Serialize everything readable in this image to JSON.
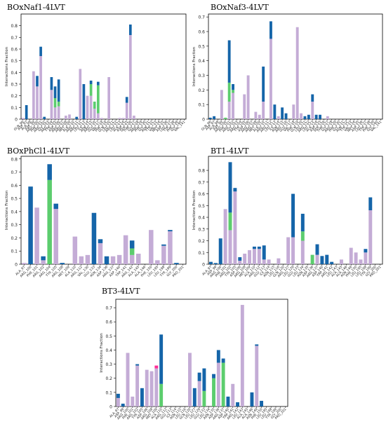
{
  "colors": {
    "hydrophobic": "#c4acd6",
    "hbond": "#1565a9",
    "water": "#5ccd6e",
    "ionic": "#ff2d96"
  },
  "chart_data": [
    {
      "type": "bar",
      "title": "BOxNaf1-4LVT",
      "ylabel": "Interactions Fraction",
      "ylim": [
        0,
        0.9
      ],
      "yticks": [
        0,
        0.1,
        0.2,
        0.3,
        0.4,
        0.5,
        0.6,
        0.7,
        0.8
      ],
      "categories": [
        "GLN_96",
        "ASP_97",
        "ALA_98",
        "ASP_99",
        "ARG_100",
        "PHE_101",
        "ARG_102",
        "GLY_103",
        "ARG_104",
        "TYR_105",
        "ASP_106",
        "ARG_107",
        "ARG_108",
        "MET_109",
        "ALA_110",
        "ARG_111",
        "ARG_112",
        "LEU_113",
        "ILE_114",
        "ASN_115",
        "ARG_116",
        "GLU_117",
        "VAL_118",
        "PHE_119",
        "GLN_120",
        "LEU_121",
        "ARG_122",
        "LEU_123",
        "ALA_124",
        "ASP_125",
        "SER_126",
        "THR_127",
        "GLY_128",
        "ARG_129",
        "PHE_130",
        "GLY_131",
        "ASN_132",
        "TYR_133",
        "VAL_134",
        "MET_135",
        "ASP_136",
        "LEU_137",
        "TYR_138",
        "PHE_139",
        "GLY_140",
        "VAL_141"
      ],
      "series": [
        {
          "key": "hydrophobic",
          "values": [
            0.01,
            0.0,
            0.0,
            0.41,
            0.28,
            0.54,
            0.0,
            0.0,
            0.25,
            0.1,
            0.11,
            0.0,
            0.03,
            0.04,
            0.0,
            0.0,
            0.43,
            0.0,
            0.2,
            0.2,
            0.09,
            0.05,
            0.01,
            0.0,
            0.36,
            0.0,
            0.0,
            0.01,
            0.01,
            0.14,
            0.72,
            0.03,
            0.0,
            0.0,
            0.0,
            0.0,
            0.0,
            0.0,
            0.0,
            0.0,
            0.0,
            0.0,
            0.0,
            0.0,
            0.0,
            0.0
          ]
        },
        {
          "key": "water",
          "values": [
            0.0,
            0.0,
            0.0,
            0.0,
            0.0,
            0.0,
            0.0,
            0.0,
            0.0,
            0.08,
            0.04,
            0.0,
            0.0,
            0.0,
            0.0,
            0.0,
            0.0,
            0.0,
            0.0,
            0.1,
            0.06,
            0.24,
            0.0,
            0.0,
            0.0,
            0.0,
            0.0,
            0.0,
            0.0,
            0.0,
            0.0,
            0.0,
            0.0,
            0.0,
            0.0,
            0.0,
            0.0,
            0.0,
            0.0,
            0.0,
            0.0,
            0.0,
            0.0,
            0.0,
            0.0,
            0.0
          ]
        },
        {
          "key": "hbond",
          "values": [
            0.0,
            0.12,
            0.0,
            0.0,
            0.09,
            0.08,
            0.02,
            0.0,
            0.11,
            0.1,
            0.19,
            0.0,
            0.0,
            0.0,
            0.0,
            0.02,
            0.0,
            0.3,
            0.0,
            0.03,
            0.0,
            0.03,
            0.0,
            0.0,
            0.0,
            0.0,
            0.0,
            0.0,
            0.0,
            0.05,
            0.09,
            0.0,
            0.0,
            0.0,
            0.0,
            0.0,
            0.0,
            0.0,
            0.0,
            0.0,
            0.0,
            0.0,
            0.0,
            0.0,
            0.0,
            0.0
          ]
        }
      ]
    },
    {
      "type": "bar",
      "title": "BOxNaf3-4LVT",
      "ylabel": "Interactions Fraction",
      "ylim": [
        0,
        0.72
      ],
      "yticks": [
        0,
        0.1,
        0.2,
        0.3,
        0.4,
        0.5,
        0.6,
        0.7
      ],
      "categories": [
        "GLN_96",
        "ASP_97",
        "ALA_98",
        "ASP_99",
        "ARG_100",
        "PHE_101",
        "ARG_102",
        "GLY_103",
        "ARG_104",
        "TYR_105",
        "ASP_106",
        "ARG_107",
        "ARG_108",
        "MET_109",
        "ALA_110",
        "ARG_111",
        "ARG_112",
        "LEU_113",
        "ILE_114",
        "ASN_115",
        "ARG_116",
        "GLU_117",
        "VAL_118",
        "PHE_119",
        "GLN_120",
        "LEU_121",
        "ARG_122",
        "LEU_123",
        "ALA_124",
        "ASP_125",
        "SER_126",
        "THR_127",
        "GLY_128",
        "ARG_129",
        "PHE_130",
        "GLY_131",
        "ASN_132",
        "TYR_133",
        "VAL_134",
        "MET_135",
        "ASP_136",
        "LEU_137",
        "TYR_138",
        "PHE_139",
        "GLY_140",
        "VAL_141"
      ],
      "series": [
        {
          "key": "hydrophobic",
          "values": [
            0.0,
            0.0,
            0.0,
            0.2,
            0.0,
            0.12,
            0.18,
            0.0,
            0.0,
            0.17,
            0.3,
            0.0,
            0.05,
            0.03,
            0.12,
            0.0,
            0.55,
            0.0,
            0.02,
            0.0,
            0.0,
            0.0,
            0.1,
            0.63,
            0.04,
            0.0,
            0.0,
            0.12,
            0.0,
            0.0,
            0.0,
            0.02,
            0.0,
            0.0,
            0.0,
            0.0,
            0.0,
            0.0,
            0.0,
            0.0,
            0.0,
            0.0,
            0.0,
            0.0,
            0.0,
            0.0
          ]
        },
        {
          "key": "water",
          "values": [
            0.0,
            0.0,
            0.0,
            0.0,
            0.01,
            0.13,
            0.02,
            0.0,
            0.0,
            0.0,
            0.0,
            0.0,
            0.0,
            0.0,
            0.0,
            0.0,
            0.0,
            0.0,
            0.0,
            0.0,
            0.0,
            0.0,
            0.0,
            0.0,
            0.0,
            0.0,
            0.0,
            0.0,
            0.0,
            0.0,
            0.0,
            0.0,
            0.0,
            0.0,
            0.0,
            0.0,
            0.0,
            0.0,
            0.0,
            0.0,
            0.0,
            0.0,
            0.0,
            0.0,
            0.0,
            0.0
          ]
        },
        {
          "key": "hbond",
          "values": [
            0.01,
            0.02,
            0.0,
            0.0,
            0.0,
            0.29,
            0.04,
            0.0,
            0.0,
            0.0,
            0.0,
            0.0,
            0.0,
            0.0,
            0.24,
            0.0,
            0.12,
            0.1,
            0.0,
            0.08,
            0.04,
            0.0,
            0.0,
            0.0,
            0.0,
            0.02,
            0.03,
            0.05,
            0.03,
            0.03,
            0.0,
            0.0,
            0.0,
            0.0,
            0.0,
            0.0,
            0.0,
            0.0,
            0.0,
            0.0,
            0.0,
            0.0,
            0.0,
            0.0,
            0.0,
            0.0
          ]
        }
      ]
    },
    {
      "type": "bar",
      "title": "BOxPhCl1-4LVT",
      "ylabel": "Interactions Fraction",
      "ylim": [
        0,
        0.82
      ],
      "yticks": [
        0,
        0.1,
        0.2,
        0.3,
        0.4,
        0.5,
        0.6,
        0.7,
        0.8
      ],
      "categories": [
        "ALA_97",
        "ARG_100",
        "PHE_101",
        "ARG_102",
        "ARG_104",
        "TYR_105",
        "ARG_108",
        "MET_109",
        "ALA_110",
        "ARG_112",
        "VAL_130",
        "GLU_133",
        "ASN_134",
        "ASP_136",
        "ARG_137",
        "ASP_140",
        "TRP_141",
        "ARG_142",
        "ALA_145",
        "ALA_146",
        "PHE_150",
        "LEU_195",
        "LEU_198",
        "TYR_199",
        "GLY_200",
        "PRO_201"
      ],
      "series": [
        {
          "key": "hydrophobic",
          "values": [
            0.01,
            0.0,
            0.43,
            0.03,
            0.0,
            0.42,
            0.0,
            0.0,
            0.21,
            0.06,
            0.07,
            0.0,
            0.16,
            0.0,
            0.06,
            0.07,
            0.22,
            0.07,
            0.08,
            0.0,
            0.26,
            0.03,
            0.14,
            0.25,
            0.0,
            0.0
          ]
        },
        {
          "key": "water",
          "values": [
            0.0,
            0.0,
            0.0,
            0.0,
            0.64,
            0.0,
            0.0,
            0.0,
            0.0,
            0.0,
            0.0,
            0.0,
            0.0,
            0.0,
            0.0,
            0.0,
            0.0,
            0.05,
            0.0,
            0.0,
            0.0,
            0.0,
            0.0,
            0.0,
            0.0,
            0.0
          ]
        },
        {
          "key": "hbond",
          "values": [
            0.0,
            0.59,
            0.0,
            0.03,
            0.12,
            0.04,
            0.01,
            0.0,
            0.0,
            0.0,
            0.0,
            0.39,
            0.03,
            0.06,
            0.0,
            0.0,
            0.0,
            0.06,
            0.0,
            0.0,
            0.0,
            0.0,
            0.01,
            0.01,
            0.01,
            0.0
          ]
        }
      ]
    },
    {
      "type": "bar",
      "title": "BT1-4LVT",
      "ylabel": "Interactions Fraction",
      "ylim": [
        0,
        0.92
      ],
      "yticks": [
        0,
        0.1,
        0.2,
        0.3,
        0.4,
        0.5,
        0.6,
        0.7,
        0.8
      ],
      "categories": [
        "ALA_97",
        "ASP_99",
        "ARG_100",
        "PHE_101",
        "ARG_102",
        "TYR_105",
        "ASP_106",
        "ARG_108",
        "MET_109",
        "ALA_110",
        "ARG_112",
        "GLU_113",
        "ILE_114",
        "ASN_115",
        "LEU_116",
        "GLN_120",
        "ARG_127",
        "LEU_129",
        "GLU_133",
        "LEU_134",
        "ASN_135",
        "ASP_136",
        "ARG_137",
        "ASP_140",
        "TRP_141",
        "ARG_142",
        "LEU_143",
        "ALA_145",
        "ALA_146",
        "ASN_149",
        "PHE_150",
        "LEU_195",
        "LEU_198",
        "TYR_199",
        "GLY_200",
        "PRO_201"
      ],
      "series": [
        {
          "key": "hydrophobic",
          "values": [
            0.0,
            0.0,
            0.0,
            0.47,
            0.29,
            0.62,
            0.03,
            0.09,
            0.12,
            0.13,
            0.13,
            0.04,
            0.04,
            0.0,
            0.05,
            0.0,
            0.23,
            0.23,
            0.0,
            0.2,
            0.0,
            0.0,
            0.08,
            0.0,
            0.0,
            0.0,
            0.0,
            0.04,
            0.0,
            0.14,
            0.1,
            0.04,
            0.1,
            0.46,
            0.0,
            0.0
          ]
        },
        {
          "key": "water",
          "values": [
            0.0,
            0.0,
            0.0,
            0.0,
            0.15,
            0.0,
            0.0,
            0.0,
            0.0,
            0.0,
            0.0,
            0.0,
            0.0,
            0.0,
            0.0,
            0.0,
            0.0,
            0.0,
            0.0,
            0.08,
            0.0,
            0.08,
            0.0,
            0.0,
            0.0,
            0.0,
            0.0,
            0.0,
            0.0,
            0.0,
            0.0,
            0.0,
            0.0,
            0.0,
            0.0,
            0.0
          ]
        },
        {
          "key": "hbond",
          "values": [
            0.02,
            0.01,
            0.22,
            0.0,
            0.43,
            0.03,
            0.03,
            0.0,
            0.0,
            0.02,
            0.02,
            0.12,
            0.0,
            0.0,
            0.0,
            0.0,
            0.0,
            0.37,
            0.0,
            0.15,
            0.0,
            0.0,
            0.09,
            0.07,
            0.08,
            0.02,
            0.0,
            0.0,
            0.0,
            0.0,
            0.0,
            0.0,
            0.03,
            0.11,
            0.0,
            0.0
          ]
        }
      ]
    },
    {
      "type": "bar",
      "title": "BT3-4LVT",
      "ylabel": "Interactions Fraction",
      "ylim": [
        0,
        0.76
      ],
      "yticks": [
        0,
        0.1,
        0.2,
        0.3,
        0.4,
        0.5,
        0.6,
        0.7
      ],
      "categories": [
        "ALA_97",
        "ASP_99",
        "ARG_100",
        "PHE_101",
        "ARG_102",
        "TYR_105",
        "ASP_106",
        "ARG_108",
        "MET_109",
        "ALA_110",
        "ARG_112",
        "GLU_113",
        "ILE_114",
        "ASN_115",
        "LEU_116",
        "GLN_120",
        "LEU_127",
        "LEU_129",
        "GLU_133",
        "LEU_134",
        "ASN_135",
        "ASP_136",
        "ARG_137",
        "ASP_140",
        "TRP_141",
        "ARG_142",
        "LEU_143",
        "ALA_145",
        "ALA_146",
        "ASN_149",
        "PHE_150",
        "LEU_195",
        "LEU_198",
        "TYR_199",
        "GLY_200",
        "PRO_201"
      ],
      "series": [
        {
          "key": "hydrophobic",
          "values": [
            0.06,
            0.0,
            0.38,
            0.07,
            0.29,
            0.0,
            0.26,
            0.25,
            0.27,
            0.0,
            0.0,
            0.0,
            0.0,
            0.0,
            0.0,
            0.38,
            0.0,
            0.18,
            0.0,
            0.0,
            0.0,
            0.31,
            0.0,
            0.0,
            0.16,
            0.0,
            0.72,
            0.0,
            0.0,
            0.43,
            0.0,
            0.0,
            0.0,
            0.0,
            0.0,
            0.0
          ]
        },
        {
          "key": "water",
          "values": [
            0.0,
            0.0,
            0.0,
            0.0,
            0.0,
            0.0,
            0.0,
            0.0,
            0.0,
            0.16,
            0.0,
            0.0,
            0.0,
            0.0,
            0.0,
            0.0,
            0.0,
            0.0,
            0.11,
            0.0,
            0.2,
            0.0,
            0.31,
            0.0,
            0.0,
            0.0,
            0.0,
            0.0,
            0.0,
            0.0,
            0.0,
            0.0,
            0.0,
            0.0,
            0.0,
            0.0
          ]
        },
        {
          "key": "hbond",
          "values": [
            0.03,
            0.02,
            0.0,
            0.0,
            0.01,
            0.13,
            0.0,
            0.0,
            0.0,
            0.35,
            0.0,
            0.0,
            0.0,
            0.0,
            0.0,
            0.0,
            0.13,
            0.06,
            0.16,
            0.0,
            0.03,
            0.09,
            0.03,
            0.07,
            0.0,
            0.03,
            0.0,
            0.0,
            0.1,
            0.01,
            0.04,
            0.0,
            0.0,
            0.0,
            0.0,
            0.0
          ]
        },
        {
          "key": "ionic",
          "values": [
            0.0,
            0.0,
            0.0,
            0.0,
            0.0,
            0.0,
            0.0,
            0.0,
            0.02,
            0.0,
            0.0,
            0.0,
            0.0,
            0.0,
            0.0,
            0.0,
            0.0,
            0.0,
            0.0,
            0.0,
            0.0,
            0.0,
            0.0,
            0.0,
            0.0,
            0.0,
            0.0,
            0.0,
            0.0,
            0.0,
            0.0,
            0.0,
            0.0,
            0.0,
            0.0,
            0.0
          ]
        }
      ]
    }
  ]
}
